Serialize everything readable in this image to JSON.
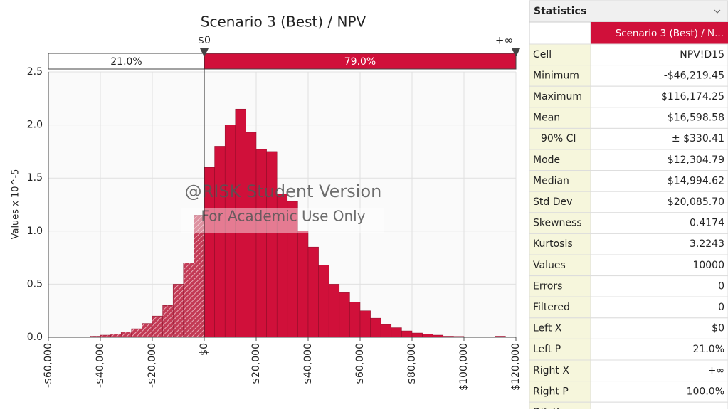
{
  "chart_data": {
    "type": "histogram",
    "title": "Scenario 3 (Best) / NPV",
    "ylabel": "Values x 10^-5",
    "bins": [
      -48000,
      -44000,
      -40000,
      -36000,
      -32000,
      -28000,
      -24000,
      -20000,
      -16000,
      -12000,
      -8000,
      -4000,
      0,
      4000,
      8000,
      12000,
      16000,
      20000,
      24000,
      28000,
      32000,
      36000,
      40000,
      44000,
      48000,
      52000,
      56000,
      60000,
      64000,
      68000,
      72000,
      76000,
      80000,
      84000,
      88000,
      92000,
      96000,
      100000,
      104000,
      108000,
      112000,
      116000
    ],
    "values": [
      0.005,
      0.01,
      0.02,
      0.03,
      0.05,
      0.08,
      0.13,
      0.2,
      0.3,
      0.5,
      0.7,
      1.15,
      1.6,
      1.8,
      2.0,
      2.15,
      1.93,
      1.77,
      1.75,
      1.35,
      1.28,
      1.0,
      0.85,
      0.68,
      0.5,
      0.42,
      0.33,
      0.25,
      0.18,
      0.12,
      0.09,
      0.06,
      0.04,
      0.03,
      0.02,
      0.01,
      0.008,
      0.005,
      0.003,
      0.002,
      0.01
    ],
    "color": "#d0103a",
    "left_color": "#e8a0ae",
    "xlim": [
      -60000,
      120000
    ],
    "xticks": [
      {
        "value": -60000,
        "label": "-$60,000"
      },
      {
        "value": -40000,
        "label": "-$40,000"
      },
      {
        "value": -20000,
        "label": "-$20,000"
      },
      {
        "value": 0,
        "label": "$0"
      },
      {
        "value": 20000,
        "label": "$20,000"
      },
      {
        "value": 40000,
        "label": "$40,000"
      },
      {
        "value": 60000,
        "label": "$60,000"
      },
      {
        "value": 80000,
        "label": "$80,000"
      },
      {
        "value": 100000,
        "label": "$100,000"
      },
      {
        "value": 120000,
        "label": "$120,000"
      }
    ],
    "ylim": [
      0,
      2.5
    ],
    "yticks": [
      {
        "value": 0,
        "label": "0.0"
      },
      0.5,
      {
        "value": 1,
        "label": "1.0"
      },
      1.5,
      {
        "value": 2,
        "label": "2.0"
      },
      2.5
    ],
    "grid": true,
    "delimiter": {
      "value": 0,
      "label": "$0",
      "right_label": "+∞",
      "left_pct": "21.0%",
      "right_pct": "79.0%"
    },
    "watermark": [
      "@RISK Student Version",
      "For Academic Use Only"
    ]
  },
  "statistics": {
    "title": "Statistics",
    "column": "Scenario 3 (Best) / N...",
    "rows": [
      [
        "Cell",
        "NPV!D15"
      ],
      [
        "Minimum",
        "-$46,219.45"
      ],
      [
        "Maximum",
        "$116,174.25"
      ],
      [
        "Mean",
        "$16,598.58"
      ],
      [
        "90% CI",
        "± $330.41"
      ],
      [
        "Mode",
        "$12,304.79"
      ],
      [
        "Median",
        "$14,994.62"
      ],
      [
        "Std Dev",
        "$20,085.70"
      ],
      [
        "Skewness",
        "0.4174"
      ],
      [
        "Kurtosis",
        "3.2243"
      ],
      [
        "Values",
        "10000"
      ],
      [
        "Errors",
        "0"
      ],
      [
        "Filtered",
        "0"
      ],
      [
        "Left X",
        "$0"
      ],
      [
        "Left P",
        "21.0%"
      ],
      [
        "Right X",
        "+∞"
      ],
      [
        "Right P",
        "100.0%"
      ],
      [
        "Dif. X",
        "+∞"
      ]
    ]
  }
}
